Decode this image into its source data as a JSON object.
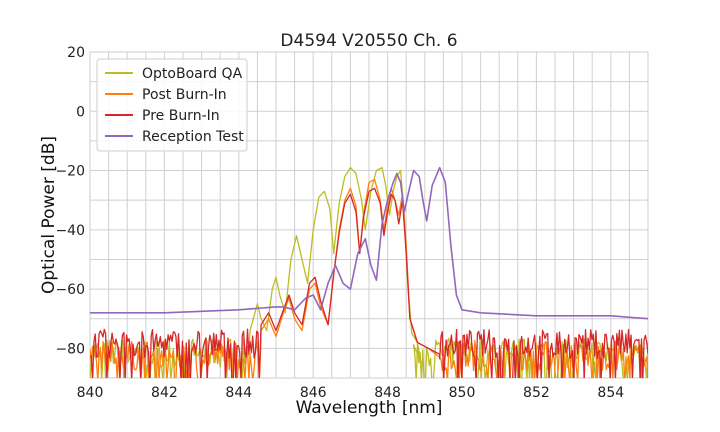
{
  "chart_data": {
    "type": "line",
    "title": "D4594 V20550 Ch. 6",
    "xlabel": "Wavelength [nm]",
    "ylabel": "Optical Power [dB]",
    "xlim": [
      840,
      855
    ],
    "ylim": [
      -90,
      20
    ],
    "xticks": [
      840,
      842,
      844,
      846,
      848,
      850,
      852,
      854
    ],
    "yticks": [
      -80,
      -60,
      -40,
      -20,
      0,
      20
    ],
    "xtick_labels": [
      "840",
      "842",
      "844",
      "846",
      "848",
      "850",
      "852",
      "854"
    ],
    "ytick_labels": [
      "−80",
      "−60",
      "−40",
      "−20",
      "0",
      "20"
    ],
    "grid": true,
    "legend_position": "top-left",
    "series": [
      {
        "name": "OptoBoard QA",
        "color": "#bcbd22",
        "noise_floor": -83,
        "noise_range": [
          840,
          844.3
        ],
        "noise_after_range": [
          848.7,
          855
        ],
        "points": [
          [
            844.3,
            -74
          ],
          [
            844.5,
            -65
          ],
          [
            844.6,
            -70
          ],
          [
            844.75,
            -74
          ],
          [
            844.9,
            -60
          ],
          [
            845.0,
            -56
          ],
          [
            845.1,
            -62
          ],
          [
            845.25,
            -68
          ],
          [
            845.4,
            -50
          ],
          [
            845.55,
            -42
          ],
          [
            845.7,
            -50
          ],
          [
            845.85,
            -58
          ],
          [
            846.0,
            -40
          ],
          [
            846.15,
            -29
          ],
          [
            846.3,
            -27
          ],
          [
            846.45,
            -33
          ],
          [
            846.55,
            -48
          ],
          [
            846.7,
            -31
          ],
          [
            846.85,
            -22
          ],
          [
            847.0,
            -19
          ],
          [
            847.15,
            -21
          ],
          [
            847.3,
            -30
          ],
          [
            847.4,
            -40
          ],
          [
            847.55,
            -27
          ],
          [
            847.7,
            -20
          ],
          [
            847.85,
            -19
          ],
          [
            847.95,
            -25
          ],
          [
            848.05,
            -35
          ],
          [
            848.15,
            -27
          ],
          [
            848.25,
            -22
          ],
          [
            848.35,
            -20
          ],
          [
            848.45,
            -35
          ],
          [
            848.55,
            -60
          ],
          [
            848.65,
            -75
          ],
          [
            848.8,
            -78
          ],
          [
            848.9,
            -85
          ]
        ]
      },
      {
        "name": "Post Burn-In",
        "color": "#ff7f0e",
        "noise_floor": -84,
        "noise_range": [
          840,
          844.6
        ],
        "noise_after_range": [
          849.4,
          855
        ],
        "points": [
          [
            844.6,
            -74
          ],
          [
            844.8,
            -70
          ],
          [
            845.0,
            -76
          ],
          [
            845.2,
            -68
          ],
          [
            845.35,
            -63
          ],
          [
            845.5,
            -70
          ],
          [
            845.7,
            -74
          ],
          [
            845.9,
            -60
          ],
          [
            846.05,
            -58
          ],
          [
            846.2,
            -66
          ],
          [
            846.4,
            -72
          ],
          [
            846.55,
            -55
          ],
          [
            846.7,
            -40
          ],
          [
            846.85,
            -30
          ],
          [
            847.0,
            -26
          ],
          [
            847.15,
            -32
          ],
          [
            847.25,
            -48
          ],
          [
            847.35,
            -35
          ],
          [
            847.5,
            -24
          ],
          [
            847.65,
            -23
          ],
          [
            847.8,
            -30
          ],
          [
            847.9,
            -40
          ],
          [
            848.0,
            -32
          ],
          [
            848.1,
            -26
          ],
          [
            848.2,
            -30
          ],
          [
            848.3,
            -35
          ],
          [
            848.4,
            -28
          ],
          [
            848.5,
            -45
          ],
          [
            848.6,
            -70
          ],
          [
            848.8,
            -78
          ],
          [
            849.1,
            -80
          ],
          [
            849.4,
            -83
          ]
        ]
      },
      {
        "name": "Pre Burn-In",
        "color": "#d62728",
        "noise_floor": -80,
        "noise_range": [
          840,
          844.6
        ],
        "noise_after_range": [
          849.4,
          855
        ],
        "points": [
          [
            844.6,
            -72
          ],
          [
            844.8,
            -68
          ],
          [
            845.0,
            -74
          ],
          [
            845.2,
            -67
          ],
          [
            845.35,
            -62
          ],
          [
            845.5,
            -68
          ],
          [
            845.7,
            -72
          ],
          [
            845.9,
            -58
          ],
          [
            846.05,
            -56
          ],
          [
            846.2,
            -64
          ],
          [
            846.4,
            -72
          ],
          [
            846.55,
            -55
          ],
          [
            846.7,
            -41
          ],
          [
            846.85,
            -31
          ],
          [
            847.0,
            -28
          ],
          [
            847.15,
            -34
          ],
          [
            847.25,
            -48
          ],
          [
            847.35,
            -36
          ],
          [
            847.5,
            -27
          ],
          [
            847.65,
            -26
          ],
          [
            847.8,
            -31
          ],
          [
            847.9,
            -42
          ],
          [
            848.0,
            -34
          ],
          [
            848.1,
            -28
          ],
          [
            848.2,
            -30
          ],
          [
            848.3,
            -38
          ],
          [
            848.4,
            -30
          ],
          [
            848.5,
            -48
          ],
          [
            848.6,
            -70
          ],
          [
            848.8,
            -78
          ],
          [
            849.1,
            -80
          ],
          [
            849.4,
            -82
          ]
        ]
      },
      {
        "name": "Reception Test",
        "color": "#9467bd",
        "baseline_points": [
          [
            840,
            -68
          ],
          [
            842,
            -68
          ],
          [
            844,
            -67
          ],
          [
            845,
            -66
          ]
        ],
        "points": [
          [
            845.2,
            -66
          ],
          [
            845.5,
            -67
          ],
          [
            845.8,
            -63
          ],
          [
            846.0,
            -62
          ],
          [
            846.2,
            -67
          ],
          [
            846.4,
            -58
          ],
          [
            846.6,
            -52
          ],
          [
            846.8,
            -58
          ],
          [
            847.0,
            -60
          ],
          [
            847.2,
            -48
          ],
          [
            847.4,
            -43
          ],
          [
            847.55,
            -52
          ],
          [
            847.7,
            -57
          ],
          [
            847.85,
            -38
          ],
          [
            848.0,
            -30
          ],
          [
            848.15,
            -24
          ],
          [
            848.25,
            -21
          ],
          [
            848.35,
            -24
          ],
          [
            848.45,
            -34
          ],
          [
            848.55,
            -28
          ],
          [
            848.7,
            -20
          ],
          [
            848.85,
            -22
          ],
          [
            848.95,
            -30
          ],
          [
            849.05,
            -37
          ],
          [
            849.2,
            -25
          ],
          [
            849.4,
            -19
          ],
          [
            849.55,
            -24
          ],
          [
            849.7,
            -45
          ],
          [
            849.85,
            -62
          ],
          [
            850.0,
            -67
          ],
          [
            850.5,
            -68
          ],
          [
            852,
            -69
          ],
          [
            854,
            -69
          ],
          [
            855,
            -70
          ]
        ]
      }
    ]
  }
}
